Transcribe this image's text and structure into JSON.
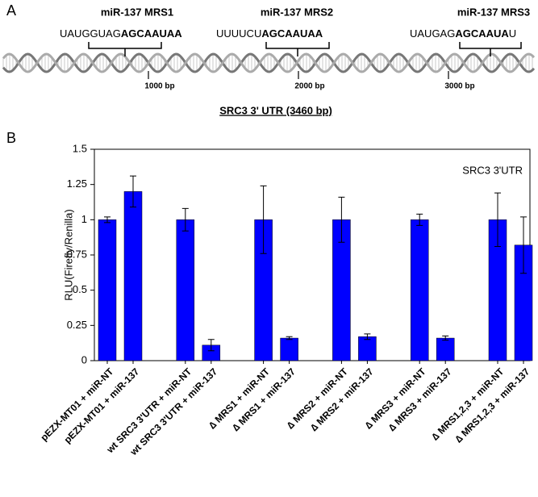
{
  "panel_a": {
    "label": "A",
    "sites": [
      {
        "name": "miR-137 MRS1",
        "sequence": [
          {
            "text": "UAUGGUAG",
            "bold": false
          },
          {
            "text": "AGCAAUAA",
            "bold": true
          }
        ]
      },
      {
        "name": "miR-137 MRS2",
        "sequence": [
          {
            "text": "UUUUCU",
            "bold": false
          },
          {
            "text": "AGCAAUAA",
            "bold": true
          }
        ]
      },
      {
        "name": "miR-137 MRS3",
        "sequence": [
          {
            "text": "UAUGAG",
            "bold": false
          },
          {
            "text": "AGCAAUA",
            "bold": true
          },
          {
            "text": "U",
            "bold": false
          }
        ]
      }
    ],
    "bp_marks": [
      "1000 bp",
      "2000 bp",
      "3000 bp"
    ],
    "caption": "SRC3 3' UTR (3460 bp)"
  },
  "panel_b": {
    "label": "B"
  },
  "chart_data": {
    "type": "bar",
    "ylabel": "RLU(Firefly/Renilla)",
    "annotation": "SRC3 3'UTR",
    "categories": [
      "pEZX-MT01 + miR-NT",
      "pEZX-MT01 + miR-137",
      "wt SRC3 3'UTR + miR-NT",
      "wt SRC3 3'UTR + miR-137",
      "∆ MRS1 + miR-NT",
      "∆ MRS1 + miR-137",
      "∆ MRS2 + miR-NT",
      "∆ MRS2 + miR-137",
      "∆ MRS3 + miR-NT",
      "∆ MRS3 + miR-137",
      "∆ MRS1,2,3 + miR-NT",
      "∆ MRS1,2,3 + miR-137"
    ],
    "values": [
      1,
      1.2,
      1,
      0.11,
      1,
      0.16,
      1,
      0.17,
      1,
      0.16,
      1,
      0.82
    ],
    "errors": [
      0.02,
      0.11,
      0.08,
      0.04,
      0.24,
      0.01,
      0.16,
      0.02,
      0.04,
      0.015,
      0.19,
      0.2
    ],
    "color": "#0000ff",
    "ylim": [
      0,
      1.5
    ],
    "yticks": [
      0,
      0.25,
      0.5,
      0.75,
      1,
      1.25,
      1.5
    ]
  }
}
